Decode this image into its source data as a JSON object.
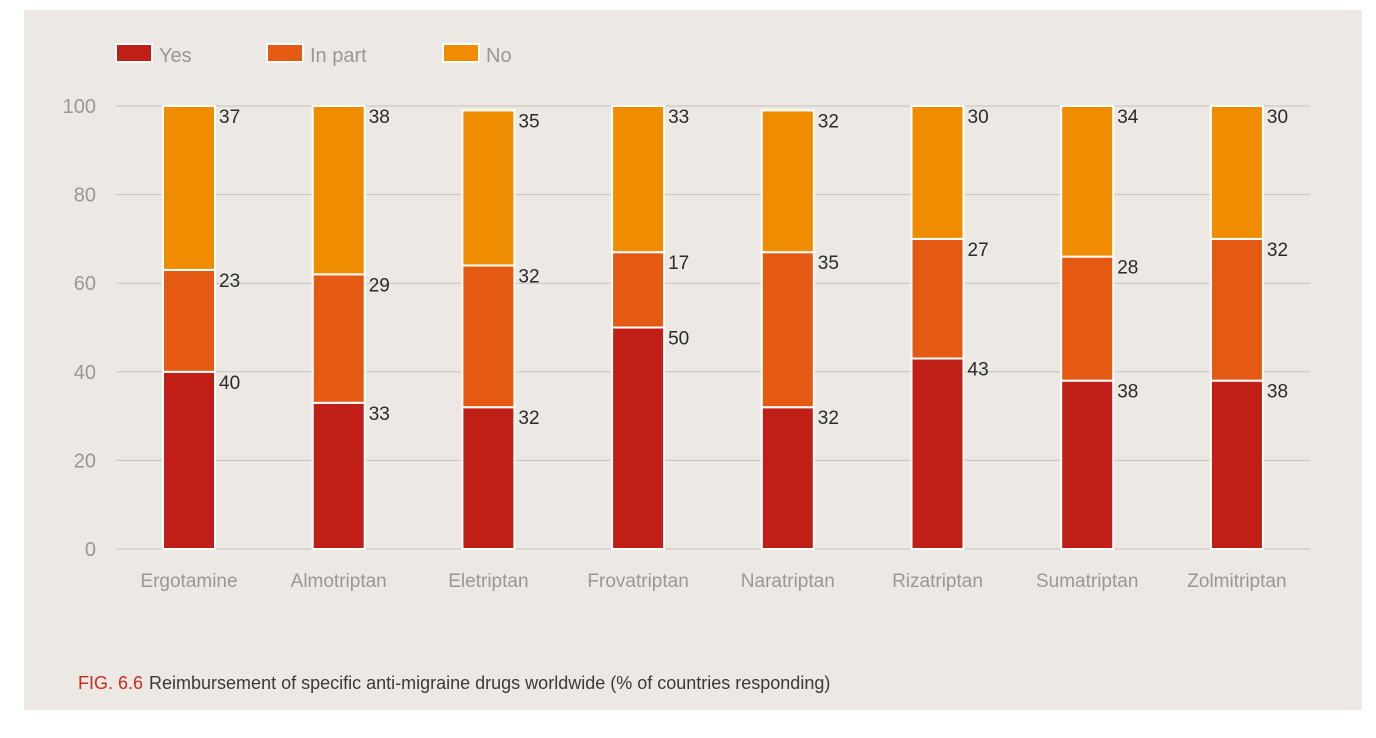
{
  "chart_data": {
    "type": "bar",
    "stacked": true,
    "categories": [
      "Ergotamine",
      "Almotriptan",
      "Eletriptan",
      "Frovatriptan",
      "Naratriptan",
      "Rizatriptan",
      "Sumatriptan",
      "Zolmitriptan"
    ],
    "series": [
      {
        "name": "Yes",
        "color": "#c01f17",
        "values": [
          40,
          33,
          32,
          50,
          32,
          43,
          38,
          38
        ]
      },
      {
        "name": "In part",
        "color": "#e55a12",
        "values": [
          23,
          29,
          32,
          17,
          35,
          27,
          28,
          32
        ]
      },
      {
        "name": "No",
        "color": "#f08c00",
        "values": [
          37,
          38,
          35,
          33,
          32,
          30,
          34,
          30
        ]
      }
    ],
    "yticks": [
      "0",
      "20",
      "40",
      "60",
      "80",
      "100"
    ],
    "ylim": [
      0,
      100
    ],
    "grid": true,
    "legend_position": "top-left"
  },
  "caption": {
    "figure_number": "FIG. 6.6",
    "text": "Reimbursement of specific anti-migraine drugs worldwide (% of countries responding)"
  }
}
